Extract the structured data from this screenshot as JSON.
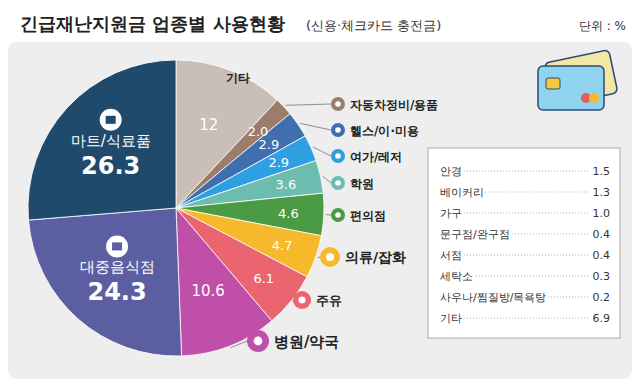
{
  "chart_data": {
    "type": "pie",
    "title": "긴급재난지원금 업종별 사용현황",
    "subtitle": "(신용·체크카드 충전금)",
    "annotations": [
      "단위 : %"
    ],
    "categories": [
      "기타",
      "자동차정비/용품",
      "헬스/이·미용",
      "여가/레저",
      "학원",
      "편의점",
      "의류/잡화",
      "주유",
      "병원/약국",
      "대중음식점",
      "마트/식료품"
    ],
    "values": [
      12,
      2,
      2.9,
      2.9,
      3.6,
      4.6,
      4.7,
      6.1,
      10.6,
      24.3,
      26.3
    ],
    "value_labels": [
      "12",
      "2.0",
      "2.9",
      "2.9",
      "3.6",
      "4.6",
      "4.7",
      "6.1",
      "10.6",
      "24.3",
      "26.3"
    ],
    "colors": [
      "#c9bfb7",
      "#9c7d6c",
      "#3f6fae",
      "#2e9fe0",
      "#6cbdb0",
      "#4b9b44",
      "#f6b92b",
      "#ea6570",
      "#c04fa9",
      "#5b5fa2",
      "#1f4a6c"
    ],
    "data_labels": true
  },
  "table": {
    "rows": [
      [
        "안경",
        "1.5"
      ],
      [
        "베이커리",
        "1.3"
      ],
      [
        "가구",
        "1.0"
      ],
      [
        "문구점/완구점",
        "0.4"
      ],
      [
        "서점",
        "0.4"
      ],
      [
        "세탁소",
        "0.3"
      ],
      [
        "사우나/찜질방/목욕탕",
        "0.2"
      ],
      [
        "기타",
        "6.9"
      ]
    ]
  }
}
